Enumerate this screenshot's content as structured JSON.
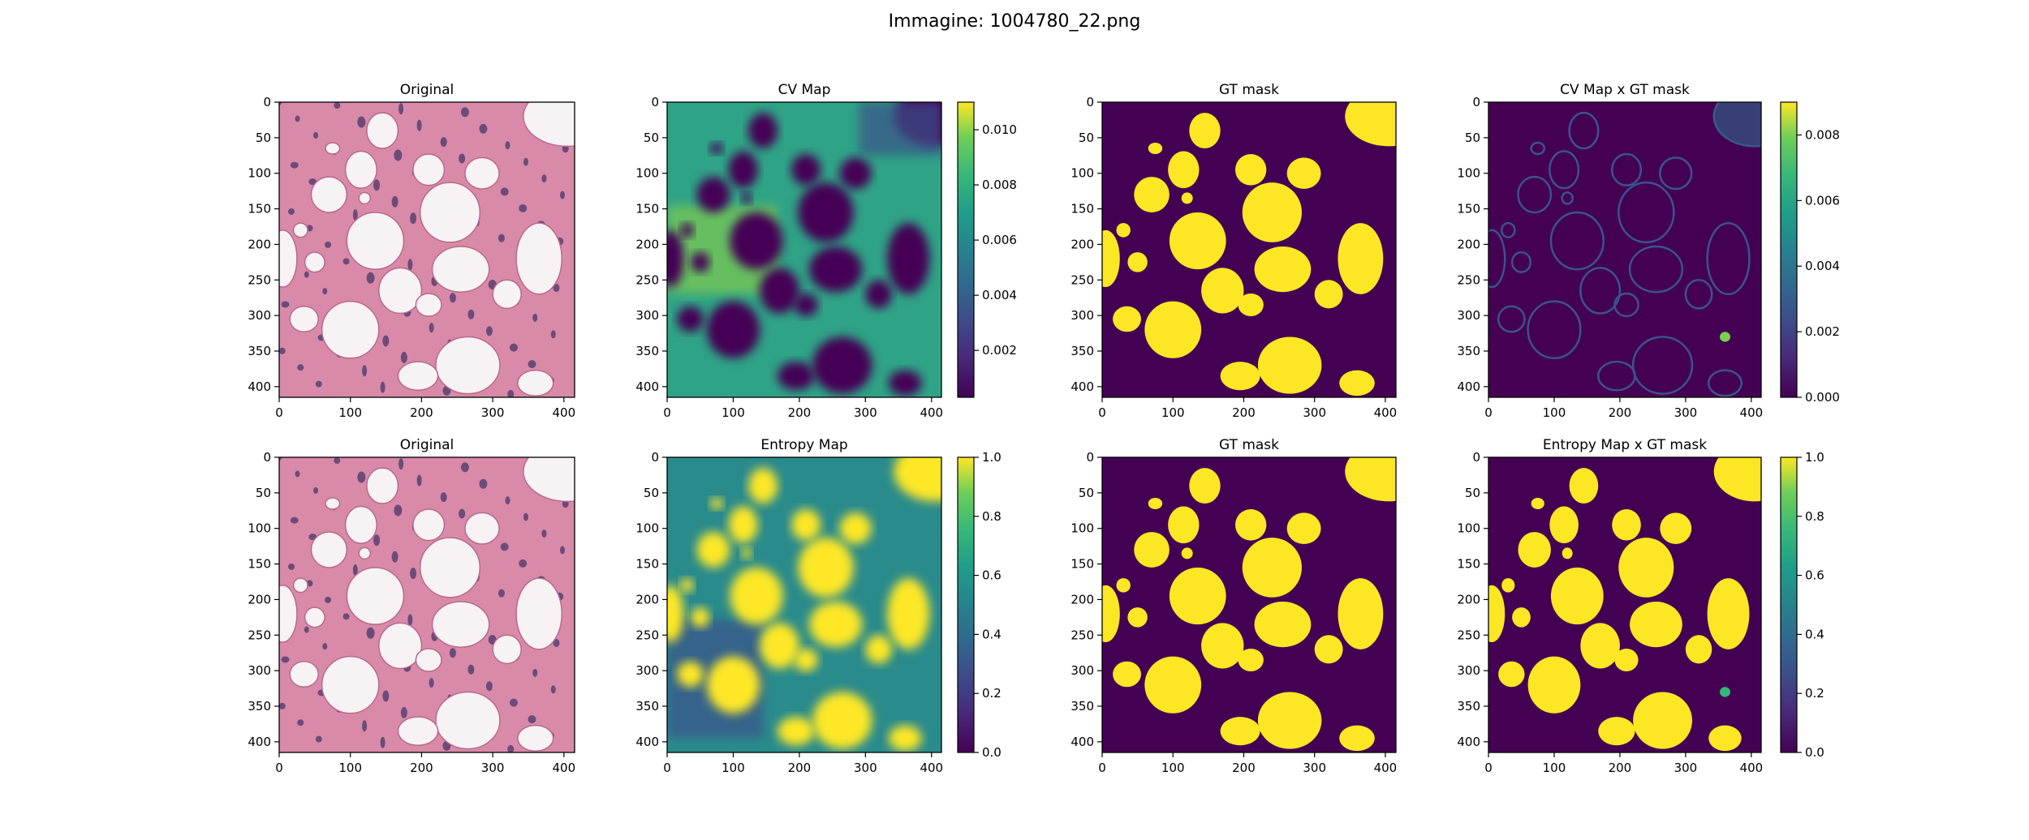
{
  "figure": {
    "suptitle": "Immagine: 1004780_22.png"
  },
  "colors": {
    "viridis_dark": "#440154",
    "viridis_mid": "#21918c",
    "viridis_bright": "#fde725",
    "tissue_pink": "#d88aa8",
    "nuclei": "#5a4070",
    "lumen": "#f7f2f4"
  },
  "chart_data": [
    {
      "type": "heatmap",
      "title": "Original",
      "row": 0,
      "col": 0,
      "kind": "histology",
      "xlim": [
        0,
        415
      ],
      "ylim": [
        415,
        0
      ],
      "xticks": [
        0,
        100,
        200,
        300,
        400
      ],
      "yticks": [
        0,
        50,
        100,
        150,
        200,
        250,
        300,
        350,
        400
      ]
    },
    {
      "type": "heatmap",
      "title": "CV Map",
      "row": 0,
      "col": 1,
      "kind": "cv",
      "colormap": "viridis",
      "xlim": [
        0,
        415
      ],
      "ylim": [
        415,
        0
      ],
      "xticks": [
        0,
        100,
        200,
        300,
        400
      ],
      "yticks": [
        0,
        50,
        100,
        150,
        200,
        250,
        300,
        350,
        400
      ],
      "colorbar": {
        "range": [
          0.0003,
          0.011
        ],
        "ticks": [
          0.002,
          0.004,
          0.006,
          0.008,
          0.01
        ],
        "tick_labels": [
          "0.002",
          "0.004",
          "0.006",
          "0.008",
          "0.010"
        ]
      }
    },
    {
      "type": "heatmap",
      "title": "GT mask",
      "row": 0,
      "col": 2,
      "kind": "mask",
      "colormap": "viridis",
      "xlim": [
        0,
        415
      ],
      "ylim": [
        415,
        0
      ],
      "xticks": [
        0,
        100,
        200,
        300,
        400
      ],
      "yticks": [
        0,
        50,
        100,
        150,
        200,
        250,
        300,
        350,
        400
      ]
    },
    {
      "type": "heatmap",
      "title": "CV Map x GT mask",
      "row": 0,
      "col": 3,
      "kind": "cvmask",
      "colormap": "viridis",
      "xlim": [
        0,
        415
      ],
      "ylim": [
        415,
        0
      ],
      "xticks": [
        0,
        100,
        200,
        300,
        400
      ],
      "yticks": [
        0,
        50,
        100,
        150,
        200,
        250,
        300,
        350,
        400
      ],
      "colorbar": {
        "range": [
          0,
          0.009
        ],
        "ticks": [
          0,
          0.002,
          0.004,
          0.006,
          0.008
        ],
        "tick_labels": [
          "0.000",
          "0.002",
          "0.004",
          "0.006",
          "0.008"
        ]
      }
    },
    {
      "type": "heatmap",
      "title": "Original",
      "row": 1,
      "col": 0,
      "kind": "histology",
      "xlim": [
        0,
        415
      ],
      "ylim": [
        415,
        0
      ],
      "xticks": [
        0,
        100,
        200,
        300,
        400
      ],
      "yticks": [
        0,
        50,
        100,
        150,
        200,
        250,
        300,
        350,
        400
      ]
    },
    {
      "type": "heatmap",
      "title": "Entropy Map",
      "row": 1,
      "col": 1,
      "kind": "entropy",
      "colormap": "viridis",
      "xlim": [
        0,
        415
      ],
      "ylim": [
        415,
        0
      ],
      "xticks": [
        0,
        100,
        200,
        300,
        400
      ],
      "yticks": [
        0,
        50,
        100,
        150,
        200,
        250,
        300,
        350,
        400
      ],
      "colorbar": {
        "range": [
          0,
          1
        ],
        "ticks": [
          0,
          0.2,
          0.4,
          0.6,
          0.8,
          1.0
        ],
        "tick_labels": [
          "0.0",
          "0.2",
          "0.4",
          "0.6",
          "0.8",
          "1.0"
        ]
      }
    },
    {
      "type": "heatmap",
      "title": "GT mask",
      "row": 1,
      "col": 2,
      "kind": "mask",
      "colormap": "viridis",
      "xlim": [
        0,
        415
      ],
      "ylim": [
        415,
        0
      ],
      "xticks": [
        0,
        100,
        200,
        300,
        400
      ],
      "yticks": [
        0,
        50,
        100,
        150,
        200,
        250,
        300,
        350,
        400
      ]
    },
    {
      "type": "heatmap",
      "title": "Entropy Map x GT mask",
      "row": 1,
      "col": 3,
      "kind": "entmask",
      "colormap": "viridis",
      "xlim": [
        0,
        415
      ],
      "ylim": [
        415,
        0
      ],
      "xticks": [
        0,
        100,
        200,
        300,
        400
      ],
      "yticks": [
        0,
        50,
        100,
        150,
        200,
        250,
        300,
        350,
        400
      ],
      "colorbar": {
        "range": [
          0,
          1
        ],
        "ticks": [
          0,
          0.2,
          0.4,
          0.6,
          0.8,
          1.0
        ],
        "tick_labels": [
          "0.0",
          "0.2",
          "0.4",
          "0.6",
          "0.8",
          "1.0"
        ]
      }
    }
  ],
  "lumens": [
    [
      405,
      20,
      62,
      42
    ],
    [
      240,
      155,
      42,
      42
    ],
    [
      255,
      235,
      40,
      32
    ],
    [
      145,
      40,
      22,
      25
    ],
    [
      115,
      95,
      22,
      26
    ],
    [
      210,
      95,
      22,
      22
    ],
    [
      285,
      100,
      24,
      22
    ],
    [
      365,
      220,
      32,
      50
    ],
    [
      135,
      195,
      40,
      40
    ],
    [
      70,
      130,
      25,
      25
    ],
    [
      100,
      320,
      40,
      40
    ],
    [
      265,
      370,
      45,
      40
    ],
    [
      170,
      265,
      30,
      32
    ],
    [
      210,
      285,
      18,
      16
    ],
    [
      35,
      305,
      20,
      18
    ],
    [
      320,
      270,
      20,
      20
    ],
    [
      195,
      385,
      28,
      20
    ],
    [
      5,
      220,
      20,
      40
    ],
    [
      360,
      395,
      25,
      18
    ],
    [
      50,
      225,
      14,
      14
    ],
    [
      30,
      180,
      10,
      10
    ],
    [
      120,
      135,
      8,
      8
    ],
    [
      75,
      65,
      10,
      8
    ]
  ]
}
